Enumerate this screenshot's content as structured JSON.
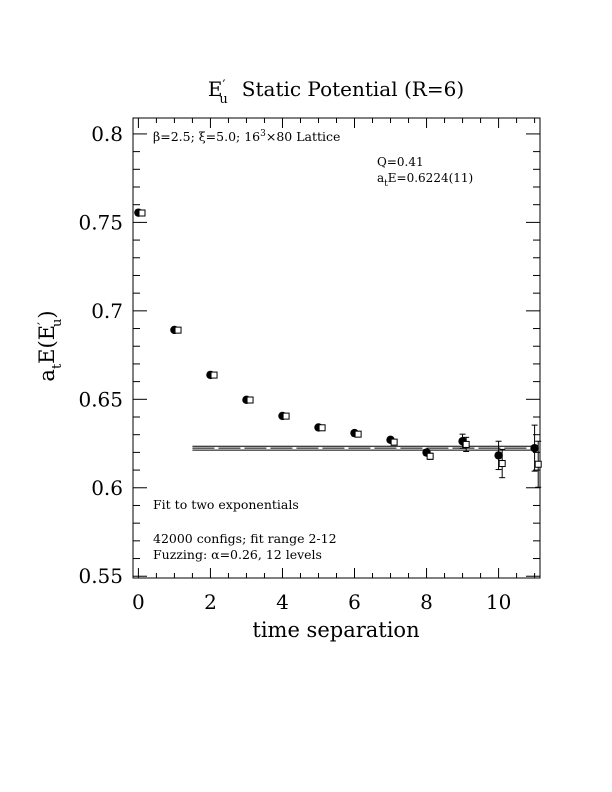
{
  "chart_data": {
    "type": "scatter",
    "title": "E′u Static Potential (R=6)",
    "title_parts": {
      "letter": "E",
      "prime": "′",
      "sub": "u",
      "rest": "Static Potential (R=6)"
    },
    "xlabel": "time separation",
    "ylabel": "atE(E′u)",
    "ylabel_parts": {
      "a": "a",
      "a_sub": "t",
      "body": "E(E",
      "prime": "′",
      "sub": "u",
      "close": ")"
    },
    "xlim": [
      -0.15,
      11.15
    ],
    "ylim": [
      0.549,
      0.809
    ],
    "xticks": [
      0,
      2,
      4,
      6,
      8,
      10
    ],
    "xtick_labels": [
      "0",
      "2",
      "4",
      "6",
      "8",
      "10"
    ],
    "yticks": [
      0.55,
      0.6,
      0.65,
      0.7,
      0.75,
      0.8
    ],
    "ytick_labels": [
      "0.55",
      "0.6",
      "0.65",
      "0.7",
      "0.75",
      "0.8"
    ],
    "grid": false,
    "annotations": {
      "lattice": {
        "beta": "β=2.5;",
        "xi": "ξ=5.0;",
        "size": "16",
        "size_sup": "3",
        "rest": "×80 Lattice"
      },
      "q": "Q=0.41",
      "fit_energy": {
        "a": "a",
        "sub": "t",
        "rest": "E=0.6224(11)"
      },
      "fit_type": "Fit to two exponentials",
      "configs": "42000 configs; fit range 2-12",
      "fuzzing": "Fuzzing: α=0.26, 12 levels"
    },
    "fit": {
      "value": 0.6224,
      "error": 0.0011,
      "x_start": 1.5,
      "x_end": 11.1
    },
    "series": [
      {
        "marker": "filled-circle",
        "x": [
          0,
          1,
          2,
          3,
          4,
          5,
          6,
          7,
          8,
          9,
          10,
          11
        ],
        "y": [
          0.7555,
          0.6892,
          0.6638,
          0.6497,
          0.6406,
          0.6341,
          0.6309,
          0.6271,
          0.6199,
          0.6263,
          0.6183,
          0.6224
        ],
        "err": [
          0.0008,
          0.0008,
          0.0008,
          0.0008,
          0.0009,
          0.001,
          0.0012,
          0.0013,
          0.0017,
          0.004,
          0.008,
          0.013
        ]
      },
      {
        "marker": "open-square",
        "x": [
          0.1,
          1.1,
          2.1,
          3.1,
          4.1,
          5.1,
          6.1,
          7.1,
          8.1,
          9.1,
          10.1,
          11.1
        ],
        "y": [
          0.7553,
          0.6891,
          0.6637,
          0.6496,
          0.6405,
          0.6339,
          0.6303,
          0.6258,
          0.6178,
          0.6245,
          0.6137,
          0.6133
        ],
        "err": [
          0.0008,
          0.0008,
          0.0008,
          0.0008,
          0.0009,
          0.001,
          0.0012,
          0.0013,
          0.0017,
          0.004,
          0.008,
          0.013
        ]
      }
    ]
  }
}
